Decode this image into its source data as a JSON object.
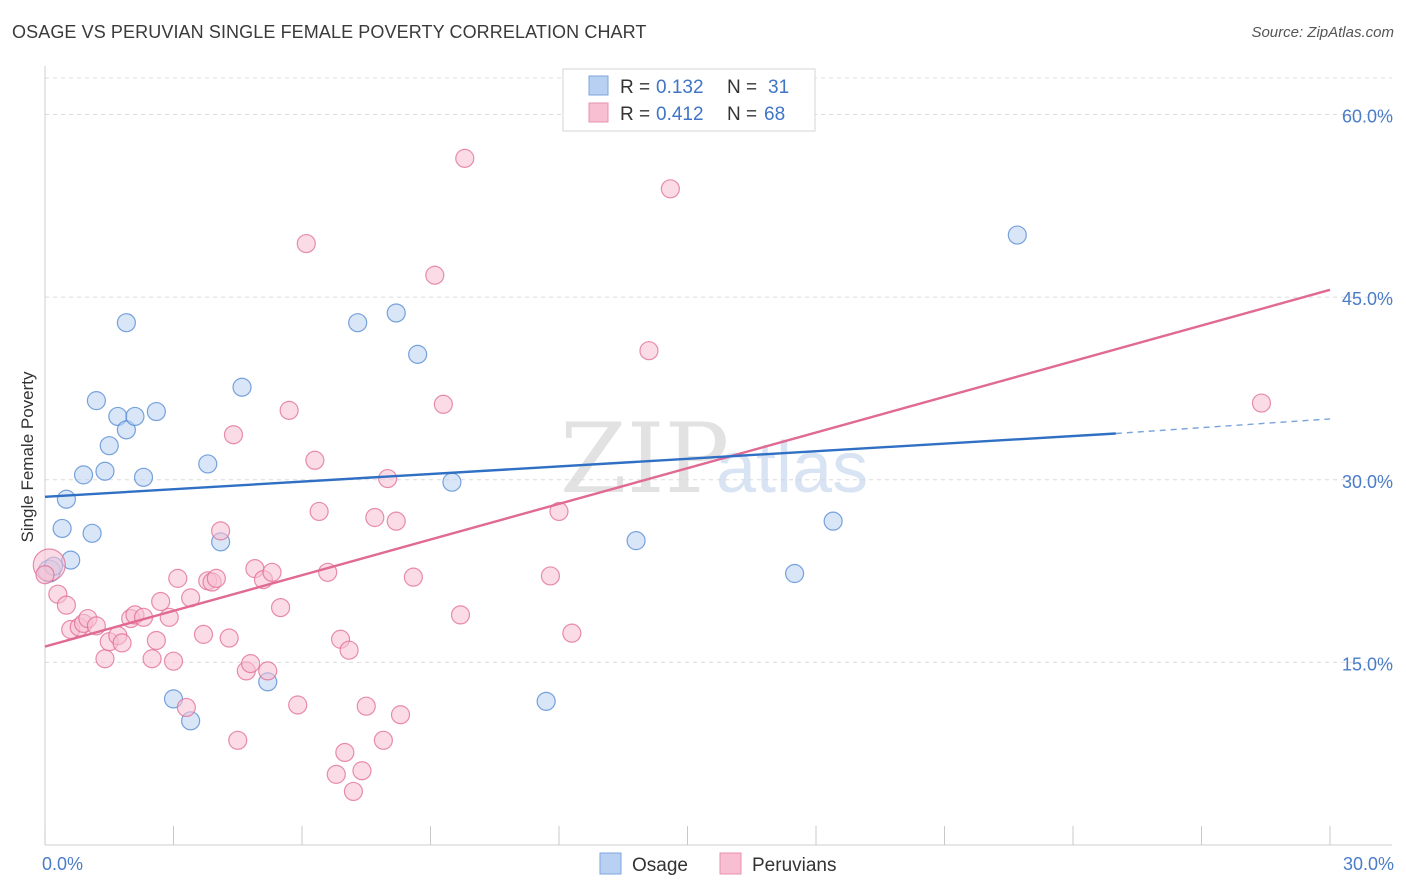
{
  "title": "OSAGE VS PERUVIAN SINGLE FEMALE POVERTY CORRELATION CHART",
  "source": "Source: ZipAtlas.com",
  "watermark": {
    "zip": "ZIP",
    "atlas": "atlas"
  },
  "colors": {
    "osage": "#4f86d2",
    "osage_fill": "#b8d1f2",
    "peruvians": "#e06a93",
    "peruvians_fill": "#f7bfd1",
    "tick": "#4a7cc8",
    "grid": "#dcdcdc"
  },
  "legend": {
    "rows": [
      {
        "r_label": "R =",
        "r_value": "0.132",
        "n_label": "N =",
        "n_value": "31"
      },
      {
        "r_label": "R =",
        "r_value": "0.412",
        "n_label": "N =",
        "n_value": "68"
      }
    ]
  },
  "bottom_legend": [
    "Osage",
    "Peruvians"
  ],
  "chart_data": {
    "type": "scatter",
    "title": "OSAGE VS PERUVIAN SINGLE FEMALE POVERTY CORRELATION CHART",
    "xlabel": "",
    "ylabel": "Single Female Poverty",
    "xlim": [
      0,
      30
    ],
    "ylim": [
      0,
      63
    ],
    "x_ticks": [
      {
        "value": 0,
        "label": "0.0%"
      },
      {
        "value": 30,
        "label": "30.0%"
      }
    ],
    "y_ticks": [
      {
        "value": 15,
        "label": "15.0%"
      },
      {
        "value": 30,
        "label": "30.0%"
      },
      {
        "value": 45,
        "label": "45.0%"
      },
      {
        "value": 60,
        "label": "60.0%"
      }
    ],
    "series": [
      {
        "name": "Osage",
        "r": 0.132,
        "n": 31,
        "trend": {
          "x0": 0,
          "y0": 28.6,
          "x1": 25,
          "y1": 33.8,
          "dash_to_x": 30,
          "dash_to_y": 35.0
        },
        "points": [
          [
            0.1,
            22.5
          ],
          [
            0.2,
            22.9
          ],
          [
            0.4,
            26.0
          ],
          [
            0.5,
            28.4
          ],
          [
            0.6,
            23.4
          ],
          [
            0.9,
            30.4
          ],
          [
            1.1,
            25.6
          ],
          [
            1.2,
            36.5
          ],
          [
            1.4,
            30.7
          ],
          [
            1.5,
            32.8
          ],
          [
            1.7,
            35.2
          ],
          [
            1.9,
            34.1
          ],
          [
            2.1,
            35.2
          ],
          [
            2.3,
            30.2
          ],
          [
            2.6,
            35.6
          ],
          [
            1.9,
            42.9
          ],
          [
            3.0,
            12.0
          ],
          [
            3.4,
            10.2
          ],
          [
            3.8,
            31.3
          ],
          [
            4.1,
            24.9
          ],
          [
            4.6,
            37.6
          ],
          [
            5.2,
            13.4
          ],
          [
            7.3,
            42.9
          ],
          [
            8.2,
            43.7
          ],
          [
            8.7,
            40.3
          ],
          [
            9.5,
            29.8
          ],
          [
            11.7,
            11.8
          ],
          [
            13.8,
            25.0
          ],
          [
            17.5,
            22.3
          ],
          [
            18.4,
            26.6
          ],
          [
            22.7,
            50.1
          ]
        ]
      },
      {
        "name": "Peruvians",
        "r": 0.412,
        "n": 68,
        "trend": {
          "x0": 0,
          "y0": 16.3,
          "x1": 30,
          "y1": 45.6
        },
        "points": [
          [
            0.1,
            23.0
          ],
          [
            0.3,
            20.6
          ],
          [
            0.5,
            19.7
          ],
          [
            0.6,
            17.7
          ],
          [
            0.8,
            17.9
          ],
          [
            0.9,
            18.2
          ],
          [
            1.0,
            18.6
          ],
          [
            1.2,
            18.0
          ],
          [
            1.4,
            15.3
          ],
          [
            1.5,
            16.7
          ],
          [
            1.7,
            17.2
          ],
          [
            1.8,
            16.6
          ],
          [
            2.0,
            18.6
          ],
          [
            2.1,
            18.9
          ],
          [
            2.3,
            18.7
          ],
          [
            2.5,
            15.3
          ],
          [
            2.6,
            16.8
          ],
          [
            2.7,
            20.0
          ],
          [
            2.9,
            18.7
          ],
          [
            3.0,
            15.1
          ],
          [
            3.1,
            21.9
          ],
          [
            3.3,
            11.3
          ],
          [
            3.4,
            20.3
          ],
          [
            3.7,
            17.3
          ],
          [
            3.8,
            21.7
          ],
          [
            3.9,
            21.6
          ],
          [
            4.0,
            21.9
          ],
          [
            4.1,
            25.8
          ],
          [
            4.3,
            17.0
          ],
          [
            4.4,
            33.7
          ],
          [
            4.5,
            8.6
          ],
          [
            4.7,
            14.3
          ],
          [
            4.8,
            14.9
          ],
          [
            4.9,
            22.7
          ],
          [
            5.1,
            21.8
          ],
          [
            5.2,
            14.3
          ],
          [
            5.3,
            22.4
          ],
          [
            5.5,
            19.5
          ],
          [
            5.7,
            35.7
          ],
          [
            5.9,
            11.5
          ],
          [
            6.1,
            49.4
          ],
          [
            6.3,
            31.6
          ],
          [
            6.4,
            27.4
          ],
          [
            6.6,
            22.4
          ],
          [
            6.8,
            5.8
          ],
          [
            6.9,
            16.9
          ],
          [
            7.0,
            7.6
          ],
          [
            7.1,
            16.0
          ],
          [
            7.2,
            4.4
          ],
          [
            7.4,
            6.1
          ],
          [
            7.5,
            11.4
          ],
          [
            7.7,
            26.9
          ],
          [
            7.9,
            8.6
          ],
          [
            8.0,
            30.1
          ],
          [
            8.2,
            26.6
          ],
          [
            8.3,
            10.7
          ],
          [
            8.6,
            22.0
          ],
          [
            9.1,
            46.8
          ],
          [
            9.3,
            36.2
          ],
          [
            9.7,
            18.9
          ],
          [
            9.8,
            56.4
          ],
          [
            11.8,
            22.1
          ],
          [
            12.0,
            27.4
          ],
          [
            12.3,
            17.4
          ],
          [
            14.1,
            40.6
          ],
          [
            14.6,
            53.9
          ],
          [
            28.4,
            36.3
          ],
          [
            0.0,
            22.2
          ]
        ]
      }
    ]
  }
}
